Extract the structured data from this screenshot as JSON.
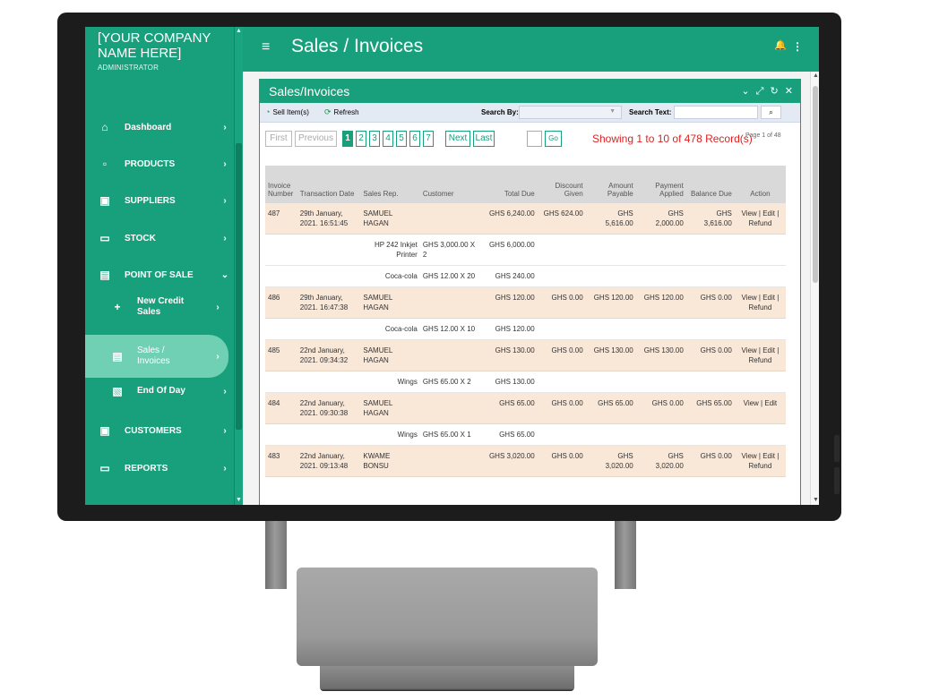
{
  "sidebar": {
    "company": "[YOUR COMPANY NAME HERE]",
    "role": "ADMINISTRATOR",
    "items": [
      {
        "label": "Dashboard",
        "icon": "home-icon",
        "glyph": "⌂",
        "chevron": "›"
      },
      {
        "label": "PRODUCTS",
        "icon": "products-icon",
        "glyph": "▫",
        "chevron": "›"
      },
      {
        "label": "SUPPLIERS",
        "icon": "suppliers-icon",
        "glyph": "▣",
        "chevron": "›"
      },
      {
        "label": "STOCK",
        "icon": "stock-icon",
        "glyph": "▭",
        "chevron": "›"
      },
      {
        "label": "POINT OF SALE",
        "icon": "point-of-sale-icon",
        "glyph": "▤",
        "chevron": "⌄"
      },
      {
        "label": "New Credit Sales",
        "icon": "plus-icon",
        "glyph": "+",
        "chevron": "›"
      },
      {
        "label": "Sales / Invoices",
        "icon": "invoice-icon",
        "glyph": "▤",
        "chevron": "›"
      },
      {
        "label": "End Of Day",
        "icon": "end-of-day-icon",
        "glyph": "▧",
        "chevron": "›"
      },
      {
        "label": "CUSTOMERS",
        "icon": "customers-icon",
        "glyph": "▣",
        "chevron": "›"
      },
      {
        "label": "REPORTS",
        "icon": "reports-icon",
        "glyph": "▭",
        "chevron": "›"
      }
    ]
  },
  "topbar": {
    "menu_glyph": "≡",
    "title": "Sales / Invoices",
    "bell_glyph": "🔔",
    "kebab_glyph": "⋮"
  },
  "panel": {
    "title": "Sales/Invoices",
    "tools": "⌄ ⤢ ↻ ✕"
  },
  "toolbar": {
    "sell_label": "Sell Item(s)",
    "refresh_label": "Refresh",
    "search_by_label": "Search By:",
    "search_by_value": "",
    "search_text_label": "Search Text:",
    "search_text_value": "",
    "search_glyph": "⌕"
  },
  "pager": {
    "first": "First",
    "previous": "Previous",
    "pages": [
      "1",
      "2",
      "3",
      "4",
      "5",
      "6",
      "7"
    ],
    "next": "Next",
    "last": "Last",
    "go": "Go",
    "showing": "Showing 1 to 10 of 478 Record(s)",
    "page_of": "Page 1 of 48"
  },
  "table": {
    "headers": [
      "Invoice Number",
      "Transaction Date",
      "Sales Rep.",
      "Customer",
      "Total Due",
      "Discount Given",
      "Amount Payable",
      "Payment Applied",
      "Balance Due",
      "Action"
    ],
    "rows": [
      {
        "type": "invoice",
        "number": "487",
        "date": "29th January, 2021. 16:51:45",
        "rep": "SAMUEL HAGAN",
        "customer": "",
        "total": "GHS 6,240.00",
        "discount": "GHS 624.00",
        "payable": "GHS 5,616.00",
        "applied": "GHS 2,000.00",
        "balance": "GHS 3,616.00",
        "action": "View | Edit | Refund"
      },
      {
        "type": "item",
        "product": "HP 242 Inkjet Printer",
        "qty": "GHS 3,000.00 X 2",
        "total": "GHS 6,000.00"
      },
      {
        "type": "item",
        "product": "Coca-cola",
        "qty": "GHS 12.00 X 20",
        "total": "GHS 240.00"
      },
      {
        "type": "invoice",
        "number": "486",
        "date": "29th January, 2021. 16:47:38",
        "rep": "SAMUEL HAGAN",
        "customer": "",
        "total": "GHS 120.00",
        "discount": "GHS 0.00",
        "payable": "GHS 120.00",
        "applied": "GHS 120.00",
        "balance": "GHS 0.00",
        "action": "View | Edit | Refund"
      },
      {
        "type": "item",
        "product": "Coca-cola",
        "qty": "GHS 12.00 X 10",
        "total": "GHS 120.00"
      },
      {
        "type": "invoice",
        "number": "485",
        "date": "22nd January, 2021. 09:34:32",
        "rep": "SAMUEL HAGAN",
        "customer": "",
        "total": "GHS 130.00",
        "discount": "GHS 0.00",
        "payable": "GHS 130.00",
        "applied": "GHS 130.00",
        "balance": "GHS 0.00",
        "action": "View | Edit | Refund"
      },
      {
        "type": "item",
        "product": "Wings",
        "qty": "GHS 65.00 X 2",
        "total": "GHS 130.00"
      },
      {
        "type": "invoice",
        "number": "484",
        "date": "22nd January, 2021. 09:30:38",
        "rep": "SAMUEL HAGAN",
        "customer": "",
        "total": "GHS 65.00",
        "discount": "GHS 0.00",
        "payable": "GHS 65.00",
        "applied": "GHS 0.00",
        "balance": "GHS 65.00",
        "action": "View | Edit"
      },
      {
        "type": "item",
        "product": "Wings",
        "qty": "GHS 65.00 X 1",
        "total": "GHS 65.00"
      },
      {
        "type": "invoice",
        "number": "483",
        "date": "22nd January, 2021. 09:13:48",
        "rep": "KWAME BONSU",
        "customer": "",
        "total": "GHS 3,020.00",
        "discount": "GHS 0.00",
        "payable": "GHS 3,020.00",
        "applied": "GHS 3,020.00",
        "balance": "GHS 0.00",
        "action": "View | Edit | Refund"
      }
    ]
  },
  "colors": {
    "brand": "#18a07c",
    "active_item": "#6fd0b4",
    "invoice_row": "#f9e7d8",
    "record_count": "#e02020"
  }
}
